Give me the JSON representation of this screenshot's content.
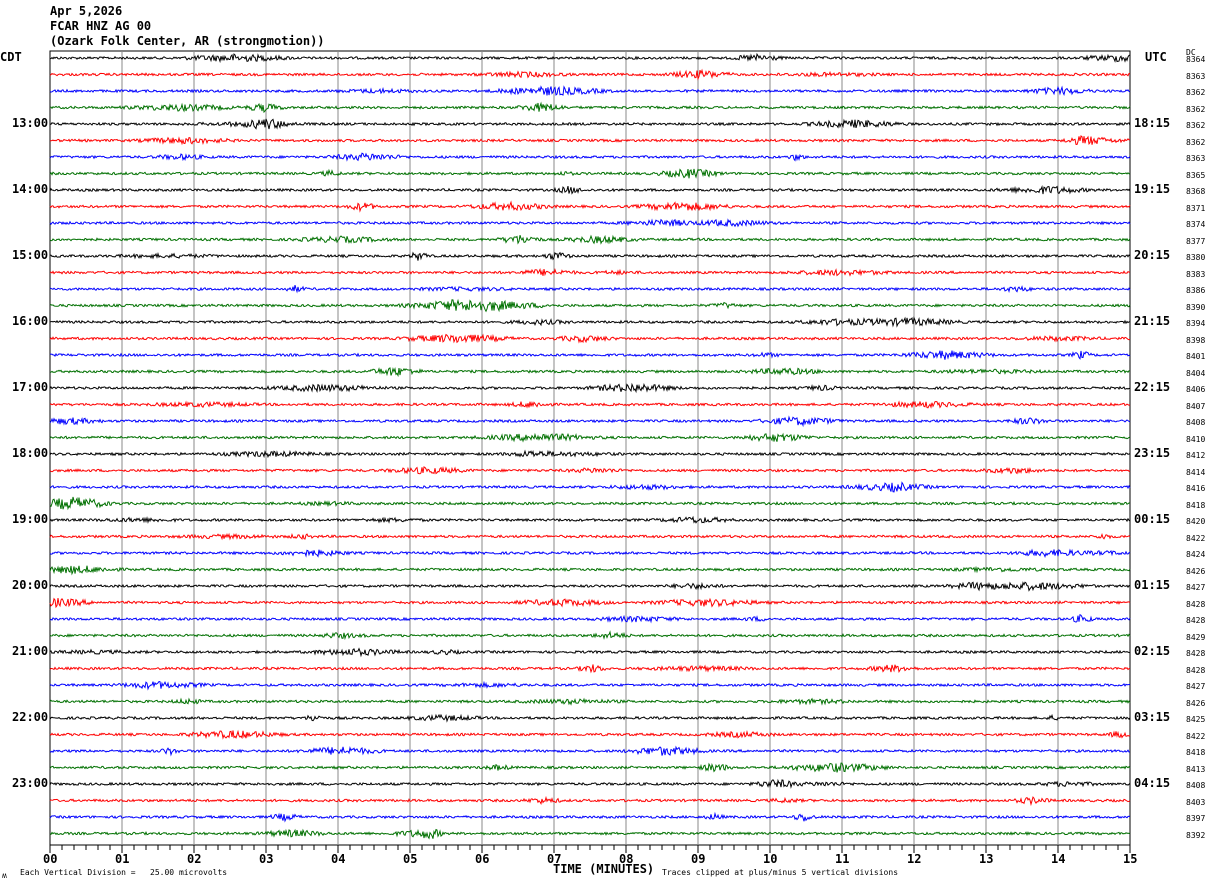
{
  "header": {
    "date": "Apr 5,2026",
    "channel": "FCAR HNZ AG 00",
    "station": "(Ozark Folk Center, AR (strongmotion))"
  },
  "chart_data": {
    "type": "line",
    "title": "FCAR HNZ AG 00",
    "left_zone_label": "CDT",
    "right_zone_label": "UTC",
    "dc_label": "DC",
    "rows_per_hour": 4,
    "minutes_per_row": 15,
    "left_hour_labels": [
      "13:00",
      "14:00",
      "15:00",
      "16:00",
      "17:00",
      "18:00",
      "19:00",
      "20:00",
      "21:00",
      "22:00",
      "23:00"
    ],
    "right_hour_labels": [
      "18:15",
      "19:15",
      "20:15",
      "21:15",
      "22:15",
      "23:15",
      "00:15",
      "01:15",
      "02:15",
      "03:15",
      "04:15"
    ],
    "dc_values": [
      8364,
      8363,
      8362,
      8362,
      8362,
      8362,
      8363,
      8365,
      8368,
      8371,
      8374,
      8377,
      8380,
      8383,
      8386,
      8390,
      8394,
      8398,
      8401,
      8404,
      8406,
      8407,
      8408,
      8410,
      8412,
      8414,
      8416,
      8418,
      8420,
      8422,
      8424,
      8426,
      8427,
      8428,
      8428,
      8429,
      8428,
      8428,
      8427,
      8426,
      8425,
      8422,
      8418,
      8413,
      8408,
      8403,
      8397,
      8392
    ],
    "trace_colors": [
      "#000000",
      "#ff0000",
      "#0000ff",
      "#007000"
    ],
    "x_ticks": [
      "00",
      "01",
      "02",
      "03",
      "04",
      "05",
      "06",
      "07",
      "08",
      "09",
      "10",
      "11",
      "12",
      "13",
      "14",
      "15"
    ],
    "xlabel": "TIME (MINUTES)",
    "xlim": [
      0,
      15
    ],
    "grid": true
  },
  "footer": {
    "scale_note": "Each Vertical Division =   25.00 microvolts",
    "clip_note": "Traces clipped at plus/minus 5 vertical divisions",
    "corner_mark": "ʍ"
  }
}
